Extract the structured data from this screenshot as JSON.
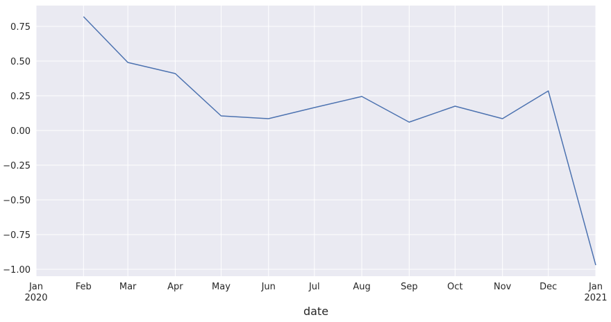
{
  "chart_data": {
    "type": "line",
    "title": "",
    "xlabel": "date",
    "ylabel": "",
    "grid": true,
    "background": "#eaeaf2",
    "grid_color": "#ffffff",
    "line_color": "#4c72b0",
    "xlim": [
      "2020-01-01",
      "2021-01-01"
    ],
    "ylim": [
      -1.05,
      0.9
    ],
    "y_ticks": [
      0.75,
      0.5,
      0.25,
      0.0,
      -0.25,
      -0.5,
      -0.75,
      -1.0
    ],
    "y_tick_labels": [
      "0.75",
      "0.50",
      "0.25",
      "0.00",
      "−0.25",
      "−0.50",
      "−0.75",
      "−1.00"
    ],
    "x_ticks": [
      {
        "date": "2020-01-01",
        "label": "Jan",
        "sublabel": "2020"
      },
      {
        "date": "2020-02-01",
        "label": "Feb",
        "sublabel": ""
      },
      {
        "date": "2020-03-01",
        "label": "Mar",
        "sublabel": ""
      },
      {
        "date": "2020-04-01",
        "label": "Apr",
        "sublabel": ""
      },
      {
        "date": "2020-05-01",
        "label": "May",
        "sublabel": ""
      },
      {
        "date": "2020-06-01",
        "label": "Jun",
        "sublabel": ""
      },
      {
        "date": "2020-07-01",
        "label": "Jul",
        "sublabel": ""
      },
      {
        "date": "2020-08-01",
        "label": "Aug",
        "sublabel": ""
      },
      {
        "date": "2020-09-01",
        "label": "Sep",
        "sublabel": ""
      },
      {
        "date": "2020-10-01",
        "label": "Oct",
        "sublabel": ""
      },
      {
        "date": "2020-11-01",
        "label": "Nov",
        "sublabel": ""
      },
      {
        "date": "2020-12-01",
        "label": "Dec",
        "sublabel": ""
      },
      {
        "date": "2021-01-01",
        "label": "Jan",
        "sublabel": "2021"
      }
    ],
    "series": [
      {
        "x": [
          "2020-02-01",
          "2020-03-01",
          "2020-04-01",
          "2020-05-01",
          "2020-06-01",
          "2020-07-01",
          "2020-08-01",
          "2020-09-01",
          "2020-10-01",
          "2020-11-01",
          "2020-12-01",
          "2021-01-01"
        ],
        "y": [
          0.82,
          0.49,
          0.41,
          0.105,
          0.085,
          0.165,
          0.245,
          0.06,
          0.175,
          0.085,
          0.285,
          -0.97
        ]
      }
    ]
  }
}
